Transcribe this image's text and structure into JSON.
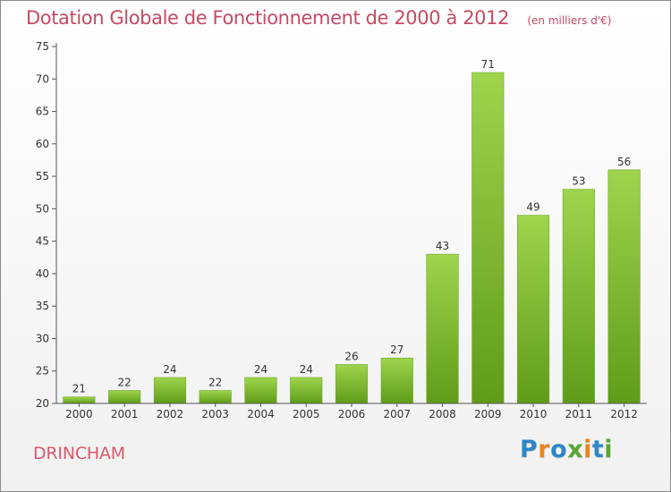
{
  "title": "Dotation Globale de Fonctionnement de 2000 à 2012",
  "unit_label": "(en milliers d'€)",
  "commune": "DRINCHAM",
  "brand": {
    "letters": [
      "P",
      "r",
      "o",
      "x",
      "i",
      "t",
      "i"
    ],
    "colors": [
      "#2f87c8",
      "#e9861f",
      "#2f87c8",
      "#5aa532",
      "#e9861f",
      "#2f87c8",
      "#5aa532"
    ]
  },
  "colors": {
    "title": "#c64a64",
    "bar_top": "#9fd44d",
    "bar_bottom": "#5f9c1a",
    "axis": "#555555",
    "grid": "#e2e2e2",
    "label": "#333333"
  },
  "chart_data": {
    "type": "bar",
    "title": "Dotation Globale de Fonctionnement de 2000 à 2012",
    "xlabel": "",
    "ylabel": "en milliers d'€",
    "categories": [
      "2000",
      "2001",
      "2002",
      "2003",
      "2004",
      "2005",
      "2006",
      "2007",
      "2008",
      "2009",
      "2010",
      "2011",
      "2012"
    ],
    "values": [
      21,
      22,
      24,
      22,
      24,
      24,
      26,
      27,
      43,
      71,
      49,
      53,
      56
    ],
    "ylim": [
      20,
      75
    ],
    "yticks": [
      20,
      25,
      30,
      35,
      40,
      45,
      50,
      55,
      60,
      65,
      70,
      75
    ],
    "grid": false,
    "legend": "none"
  }
}
